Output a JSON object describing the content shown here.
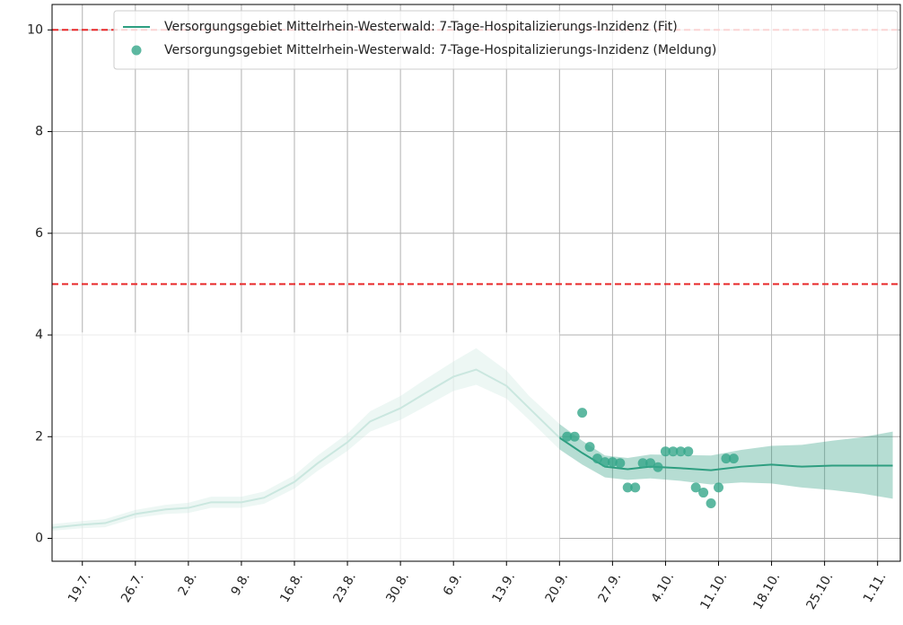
{
  "chart_data": {
    "type": "line",
    "xlim": [
      "15.7.",
      "4.11."
    ],
    "ylim": [
      -0.45,
      10.5
    ],
    "yticks": [
      0,
      2,
      4,
      6,
      8,
      10
    ],
    "xticks": [
      "19.7.",
      "26.7.",
      "2.8.",
      "9.8.",
      "16.8.",
      "23.8.",
      "30.8.",
      "6.9.",
      "13.9.",
      "20.9.",
      "27.9.",
      "4.10.",
      "11.10.",
      "18.10.",
      "25.10.",
      "1.11."
    ],
    "grid": true,
    "faded_until": "20.9.",
    "hlines": [
      {
        "value": 10,
        "color": "#e8292a"
      },
      {
        "value": 5,
        "color": "#e8292a"
      }
    ],
    "legend": "upper right",
    "series": [
      {
        "name": "Versorgungsgebiet Mittelrhein-Westerwald: 7-Tage-Hospitalizierungs-Inzidenz (Fit)",
        "color": "#2e9e80",
        "marker": "line",
        "x": [
          "15.7.",
          "19.7.",
          "22.7.",
          "26.7.",
          "30.7.",
          "2.8.",
          "5.8.",
          "9.8.",
          "12.8.",
          "16.8.",
          "19.8.",
          "23.8.",
          "26.8.",
          "30.8.",
          "2.9.",
          "6.9.",
          "9.9.",
          "13.9.",
          "16.9.",
          "20.9.",
          "23.9.",
          "26.9.",
          "29.9.",
          "2.10.",
          "6.10.",
          "10.10.",
          "14.10.",
          "18.10.",
          "22.10.",
          "26.10.",
          "30.10.",
          "3.11."
        ],
        "values": [
          0.21,
          0.27,
          0.3,
          0.48,
          0.57,
          0.6,
          0.71,
          0.71,
          0.8,
          1.11,
          1.47,
          1.89,
          2.3,
          2.56,
          2.83,
          3.18,
          3.32,
          3.0,
          2.56,
          1.98,
          1.68,
          1.41,
          1.36,
          1.41,
          1.38,
          1.34,
          1.41,
          1.45,
          1.41,
          1.43,
          1.43,
          1.43
        ],
        "lower": [
          0.15,
          0.2,
          0.22,
          0.4,
          0.48,
          0.5,
          0.6,
          0.6,
          0.68,
          0.98,
          1.32,
          1.72,
          2.1,
          2.33,
          2.57,
          2.9,
          3.02,
          2.75,
          2.33,
          1.75,
          1.45,
          1.2,
          1.15,
          1.18,
          1.13,
          1.06,
          1.1,
          1.08,
          1.0,
          0.95,
          0.88,
          0.78
        ],
        "upper": [
          0.28,
          0.34,
          0.38,
          0.56,
          0.66,
          0.7,
          0.82,
          0.82,
          0.92,
          1.24,
          1.62,
          2.06,
          2.5,
          2.8,
          3.1,
          3.48,
          3.74,
          3.3,
          2.8,
          2.25,
          1.92,
          1.63,
          1.58,
          1.65,
          1.64,
          1.63,
          1.74,
          1.82,
          1.84,
          1.92,
          1.99,
          2.1
        ]
      },
      {
        "name": "Versorgungsgebiet Mittelrhein-Westerwald: 7-Tage-Hospitalizierungs-Inzidenz (Meldung)",
        "color": "#35a68a",
        "marker": "o",
        "x": [
          "21.9.",
          "22.9.",
          "23.9.",
          "24.9.",
          "25.9.",
          "26.9.",
          "27.9.",
          "28.9.",
          "29.9.",
          "30.9.",
          "1.10.",
          "2.10.",
          "3.10.",
          "4.10.",
          "5.10.",
          "6.10.",
          "7.10.",
          "8.10.",
          "9.10.",
          "10.10.",
          "11.10.",
          "12.10.",
          "13.10."
        ],
        "values": [
          2.0,
          2.0,
          2.47,
          1.8,
          1.57,
          1.5,
          1.5,
          1.48,
          1.0,
          1.0,
          1.48,
          1.48,
          1.4,
          1.71,
          1.71,
          1.71,
          1.71,
          1.0,
          0.9,
          0.69,
          1.0,
          1.57,
          1.57
        ]
      }
    ]
  }
}
